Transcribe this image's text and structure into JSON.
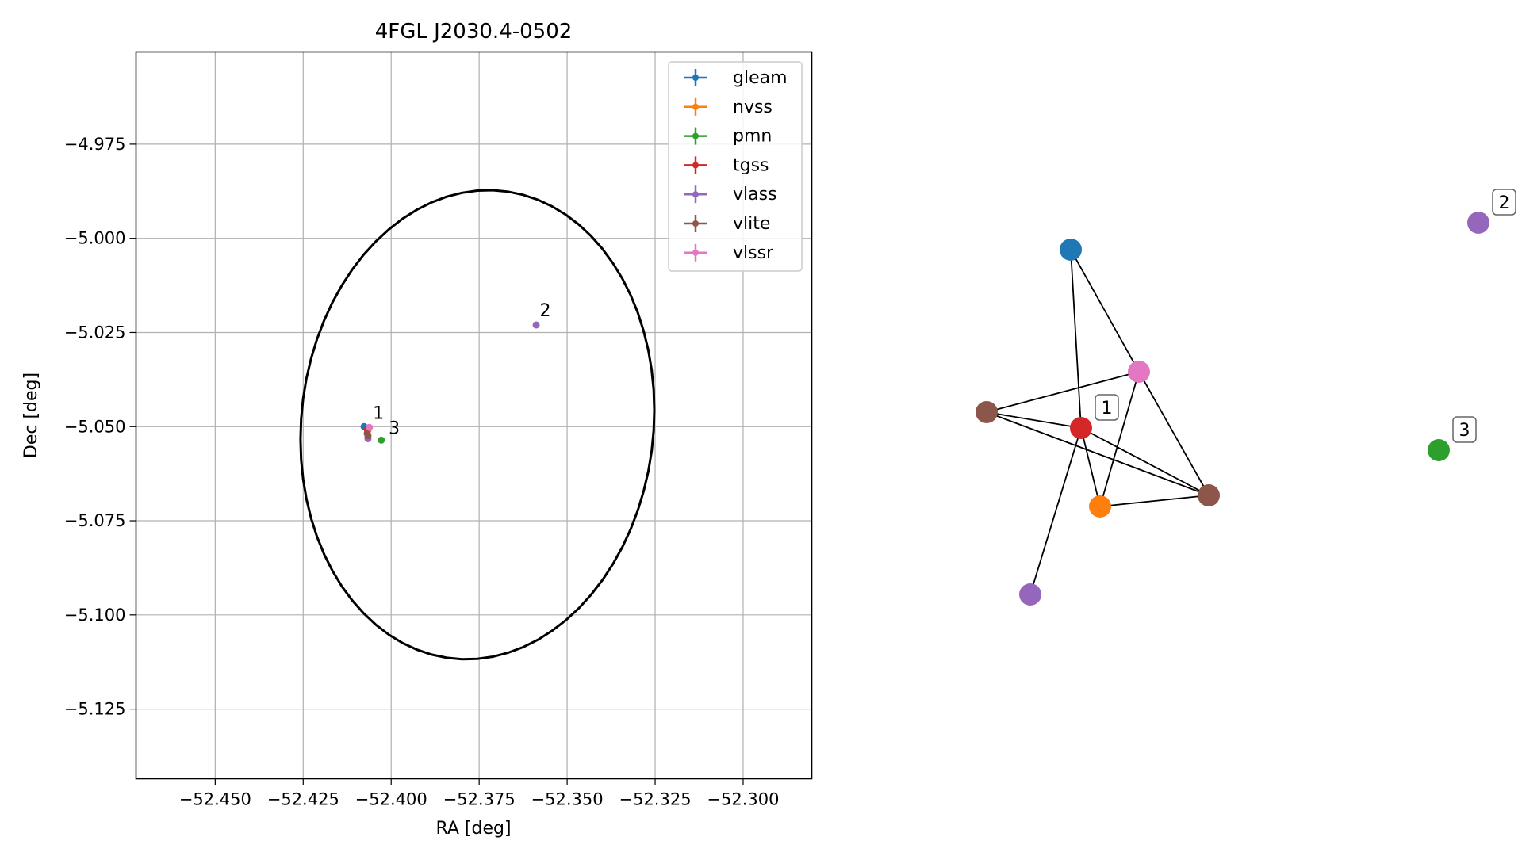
{
  "chart_data": [
    {
      "type": "scatter",
      "title": "4FGL J2030.4-0502",
      "xlabel": "RA [deg]",
      "ylabel": "Dec [deg]",
      "xlim": [
        -52.4725,
        -52.2805
      ],
      "ylim": [
        -5.1435,
        -4.9505
      ],
      "xticks": [
        -52.45,
        -52.425,
        -52.4,
        -52.375,
        -52.35,
        -52.325,
        -52.3
      ],
      "xtick_labels": [
        "−52.450",
        "−52.425",
        "−52.400",
        "−52.375",
        "−52.350",
        "−52.325",
        "−52.300"
      ],
      "yticks": [
        -4.975,
        -5.0,
        -5.025,
        -5.05,
        -5.075,
        -5.1,
        -5.125
      ],
      "ytick_labels": [
        "−4.975",
        "−5.000",
        "−5.025",
        "−5.050",
        "−5.075",
        "−5.100",
        "−5.125"
      ],
      "grid": true,
      "legend_position": "top-right",
      "ellipse": {
        "center": [
          -52.3755,
          -5.0495
        ],
        "semi_ra": 0.05,
        "semi_dec": 0.0625,
        "angle_deg": -8,
        "color": "#000000"
      },
      "series": [
        {
          "name": "gleam",
          "color": "#1f77b4",
          "points": [
            [
              -52.4077,
              -5.05
            ]
          ]
        },
        {
          "name": "nvss",
          "color": "#ff7f0e",
          "points": [
            [
              -52.4066,
              -5.051
            ]
          ]
        },
        {
          "name": "pmn",
          "color": "#2ca02c",
          "points": [
            [
              -52.4028,
              -5.0536
            ]
          ]
        },
        {
          "name": "tgss",
          "color": "#d62728",
          "points": [
            [
              -52.4068,
              -5.0508
            ]
          ]
        },
        {
          "name": "vlass",
          "color": "#9467bd",
          "points": [
            [
              -52.3588,
              -5.023
            ],
            [
              -52.4066,
              -5.0532
            ]
          ]
        },
        {
          "name": "vlite",
          "color": "#8c564b",
          "points": [
            [
              -52.4068,
              -5.0518
            ],
            [
              -52.4066,
              -5.0524
            ]
          ]
        },
        {
          "name": "vlssr",
          "color": "#e377c2",
          "points": [
            [
              -52.4062,
              -5.0502
            ]
          ]
        }
      ],
      "labels": [
        {
          "text": "1",
          "at": [
            -52.4052,
            -5.0479
          ]
        },
        {
          "text": "2",
          "at": [
            -52.3578,
            -5.0207
          ]
        },
        {
          "text": "3",
          "at": [
            -52.4007,
            -5.0519
          ]
        }
      ]
    },
    {
      "type": "network",
      "nodes": [
        {
          "id": "gleam",
          "color": "#1f77b4"
        },
        {
          "id": "vlssr",
          "color": "#e377c2"
        },
        {
          "id": "vlite_a",
          "color": "#8c564b"
        },
        {
          "id": "tgss",
          "color": "#d62728",
          "label": "1"
        },
        {
          "id": "nvss",
          "color": "#ff7f0e"
        },
        {
          "id": "vlite_b",
          "color": "#8c564b"
        },
        {
          "id": "vlass_a",
          "color": "#9467bd"
        },
        {
          "id": "vlass_b",
          "color": "#9467bd",
          "label": "2"
        },
        {
          "id": "pmn",
          "color": "#2ca02c",
          "label": "3"
        }
      ],
      "edges": [
        [
          "gleam",
          "tgss"
        ],
        [
          "gleam",
          "vlssr"
        ],
        [
          "vlite_a",
          "vlssr"
        ],
        [
          "vlite_a",
          "tgss"
        ],
        [
          "vlite_a",
          "vlite_b"
        ],
        [
          "tgss",
          "nvss"
        ],
        [
          "tgss",
          "vlite_b"
        ],
        [
          "tgss",
          "vlass_a"
        ],
        [
          "vlssr",
          "nvss"
        ],
        [
          "vlssr",
          "vlite_b"
        ],
        [
          "nvss",
          "vlite_b"
        ]
      ]
    }
  ]
}
